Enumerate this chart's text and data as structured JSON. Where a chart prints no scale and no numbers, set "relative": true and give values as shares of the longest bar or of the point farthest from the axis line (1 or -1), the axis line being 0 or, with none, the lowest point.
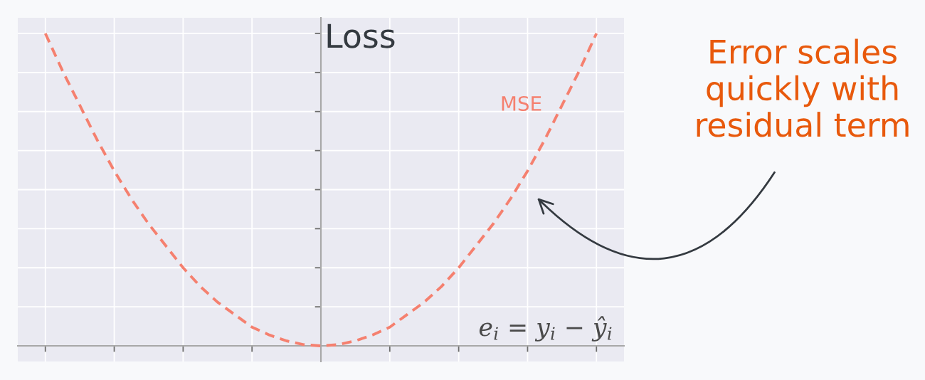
{
  "chart_data": {
    "type": "line",
    "relative": true,
    "categories": [
      null,
      null,
      null,
      null,
      null,
      null,
      null,
      null,
      null,
      null,
      null,
      null,
      null,
      null,
      null,
      null,
      null,
      null,
      null,
      null,
      null,
      null,
      null,
      null,
      null,
      null,
      null,
      null,
      null,
      null,
      null,
      null,
      null
    ],
    "series": [
      {
        "name": "MSE",
        "color": "#f5806f",
        "values": [
          1,
          0.88,
          0.77,
          0.66,
          0.56,
          0.47,
          0.39,
          0.32,
          0.25,
          0.19,
          0.14,
          0.1,
          0.06,
          0.035,
          0.016,
          0.004,
          0,
          0.004,
          0.016,
          0.035,
          0.06,
          0.1,
          0.14,
          0.19,
          0.25,
          0.32,
          0.39,
          0.47,
          0.56,
          0.66,
          0.77,
          0.88,
          1
        ]
      }
    ],
    "line_style": "dashed",
    "grid": true,
    "ylabel": "Loss",
    "xlabel": "e$_{i}$ = y$_{i}$ − ŷ$_{i}$",
    "annotations": [
      "Error scales\nquickly with\nresidual term"
    ]
  }
}
